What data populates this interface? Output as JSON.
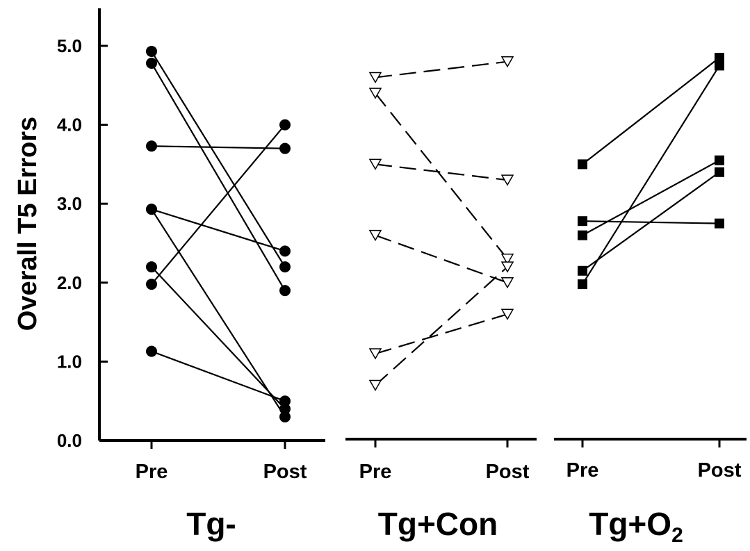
{
  "chart_data": {
    "type": "line",
    "title": "",
    "ylabel": "Overall T5 Errors",
    "ylim": [
      0,
      5.5
    ],
    "yticks": [
      "0.0",
      "1.0",
      "2.0",
      "3.0",
      "4.0",
      "5.0"
    ],
    "ytick_values": [
      0,
      1,
      2,
      3,
      4,
      5
    ],
    "categories": [
      "Pre",
      "Post"
    ],
    "grid": false,
    "panels": [
      {
        "group": "Tg-",
        "marker": "filled-circle",
        "line_style": "solid",
        "color": "#000000",
        "subjects": [
          [
            4.93,
            2.2
          ],
          [
            4.78,
            1.9
          ],
          [
            3.73,
            3.7
          ],
          [
            2.93,
            2.4
          ],
          [
            2.93,
            0.3
          ],
          [
            2.2,
            0.4
          ],
          [
            1.98,
            4.0
          ],
          [
            1.13,
            0.5
          ]
        ]
      },
      {
        "group": "Tg+Con",
        "marker": "open-triangle-down",
        "line_style": "dashed",
        "color": "#000000",
        "subjects": [
          [
            4.6,
            4.8
          ],
          [
            4.4,
            2.3
          ],
          [
            3.5,
            3.3
          ],
          [
            2.6,
            2.0
          ],
          [
            1.1,
            1.6
          ],
          [
            0.7,
            2.2
          ]
        ]
      },
      {
        "group": "Tg+O",
        "group_subscript": "2",
        "marker": "filled-square",
        "line_style": "solid",
        "color": "#000000",
        "subjects": [
          [
            3.5,
            4.85
          ],
          [
            2.78,
            2.75
          ],
          [
            2.6,
            3.55
          ],
          [
            2.15,
            3.4
          ],
          [
            1.98,
            4.75
          ]
        ]
      }
    ]
  }
}
